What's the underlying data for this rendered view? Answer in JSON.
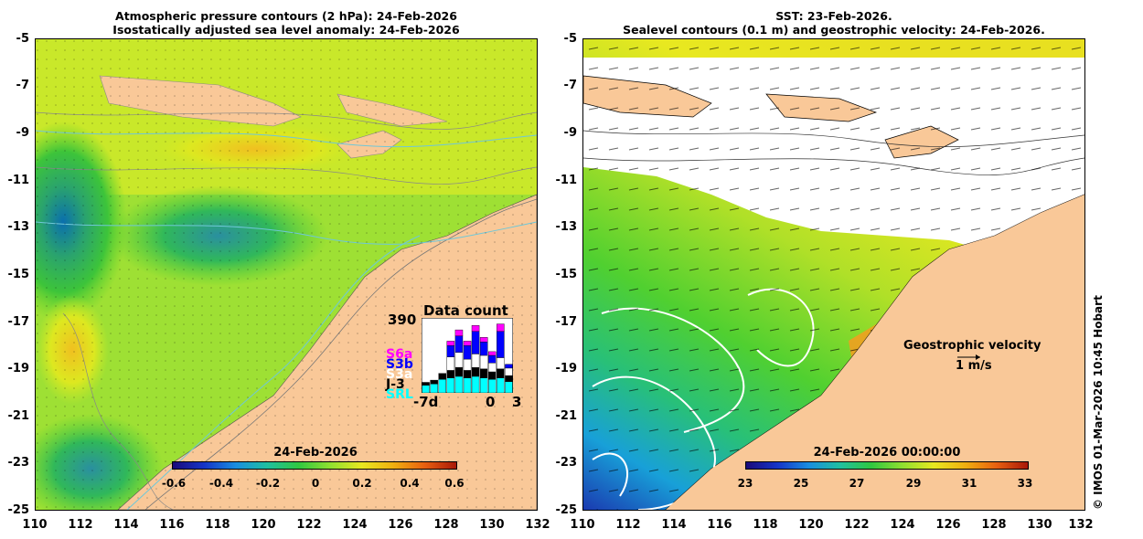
{
  "left_panel": {
    "title_line1": "Atmospheric pressure contours (2 hPa): 24-Feb-2026",
    "title_line2": "Isostatically adjusted sea level anomaly: 24-Feb-2026",
    "y_ticks": [
      "-5",
      "-7",
      "-9",
      "-11",
      "-13",
      "-15",
      "-17",
      "-19",
      "-21",
      "-23",
      "-25"
    ],
    "x_ticks": [
      "110",
      "112",
      "114",
      "116",
      "118",
      "120",
      "122",
      "124",
      "126",
      "128",
      "130",
      "132"
    ],
    "colorbar": {
      "title": "24-Feb-2026",
      "labels": [
        "-0.6",
        "-0.4",
        "-0.2",
        "0",
        "0.2",
        "0.4",
        "0.6"
      ]
    },
    "data_count": {
      "title": "Data count",
      "max_label": "390",
      "x_start_label": "-7d",
      "x_zero_label": "0",
      "x_end_label": "3",
      "legend": [
        {
          "name": "S6a",
          "color": "#ff00ff"
        },
        {
          "name": "S3b",
          "color": "#0000ff"
        },
        {
          "name": "S3a",
          "color": "#ffffff"
        },
        {
          "name": "J-3",
          "color": "#000000"
        },
        {
          "name": "SRL",
          "color": "#00ffff"
        }
      ]
    }
  },
  "right_panel": {
    "title_line1": "SST: 23-Feb-2026.",
    "title_line2": "Sealevel contours (0.1 m) and geostrophic velocity: 24-Feb-2026.",
    "y_ticks": [
      "-5",
      "-7",
      "-9",
      "-11",
      "-13",
      "-15",
      "-17",
      "-19",
      "-21",
      "-23",
      "-25"
    ],
    "x_ticks": [
      "110",
      "112",
      "114",
      "116",
      "118",
      "120",
      "122",
      "124",
      "126",
      "128",
      "130",
      "132"
    ],
    "colorbar": {
      "title": "24-Feb-2026 00:00:00",
      "labels": [
        "23",
        "25",
        "27",
        "29",
        "31",
        "33"
      ]
    },
    "velocity_legend": {
      "title": "Geostrophic velocity",
      "scale": "1 m/s"
    }
  },
  "credit": "© IMOS 01-Mar-2026 10:45 Hobart",
  "colors": {
    "land": "#f9c898",
    "cloud": "#ffffff"
  }
}
